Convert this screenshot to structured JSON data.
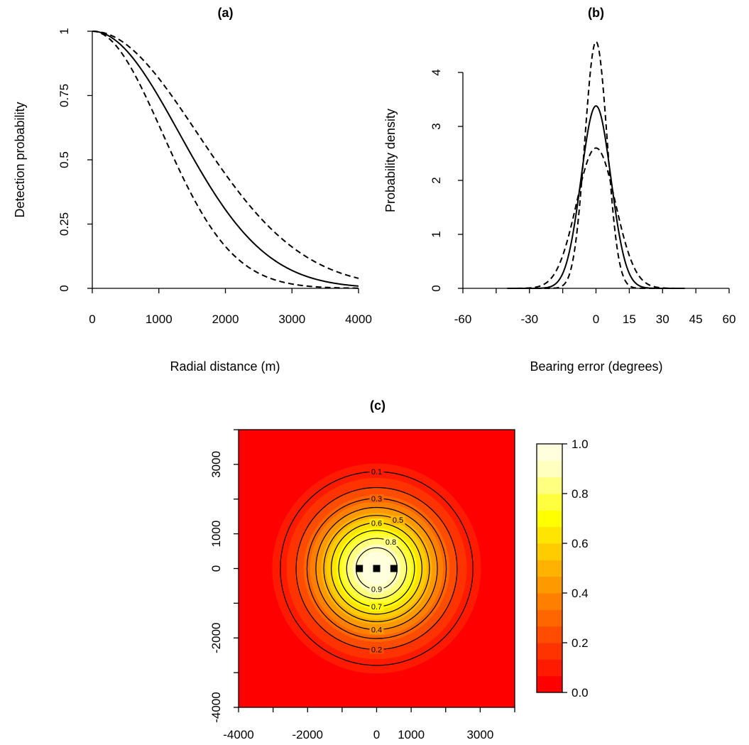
{
  "chart_data": [
    {
      "panel": "a",
      "type": "line",
      "title": "(a)",
      "xlabel": "Radial distance (m)",
      "ylabel": "Detection probability",
      "xlim": [
        0,
        4000
      ],
      "ylim": [
        0,
        1
      ],
      "x_ticks": [
        "0",
        "1000",
        "2000",
        "3000",
        "4000"
      ],
      "y_ticks": [
        "0",
        "0.25",
        "0.5",
        "0.75",
        "1"
      ],
      "series": [
        {
          "style": "solid",
          "model": "half-normal",
          "g0": 1,
          "sigma": 1300
        },
        {
          "style": "dashed",
          "model": "half-normal",
          "g0": 1,
          "sigma": 1050
        },
        {
          "style": "dashed",
          "model": "half-normal",
          "g0": 1,
          "sigma": 1570
        }
      ]
    },
    {
      "panel": "b",
      "type": "line",
      "title": "(b)",
      "xlabel": "Bearing error (degrees)",
      "ylabel": "Probability density",
      "xlim": [
        -60,
        60
      ],
      "ylim": [
        0,
        4
      ],
      "x_ticks": [
        "-60",
        "-30",
        "0",
        "15",
        "30",
        "45",
        "60"
      ],
      "x_tick_values": [
        -60,
        -45,
        -30,
        -15,
        0,
        15,
        30,
        45,
        60
      ],
      "y_ticks": [
        "0",
        "1",
        "2",
        "3",
        "4"
      ],
      "series": [
        {
          "style": "solid",
          "model": "normal",
          "peak": 3.38,
          "sd_degrees": 6.7
        },
        {
          "style": "dashed",
          "model": "normal",
          "peak": 4.57,
          "sd_degrees": 5.0
        },
        {
          "style": "dashed",
          "model": "normal",
          "peak": 2.6,
          "sd_degrees": 8.8
        }
      ]
    },
    {
      "panel": "c",
      "type": "heatmap",
      "title": "(c)",
      "xlim": [
        -4000,
        4000
      ],
      "ylim": [
        -4000,
        4000
      ],
      "x_ticks": [
        "-4000",
        "-2000",
        "0",
        "1000",
        "3000"
      ],
      "x_tick_values": [
        -4000,
        -3000,
        -2000,
        -1000,
        0,
        1000,
        2000,
        3000,
        4000
      ],
      "y_ticks": [
        "-4000",
        "-2000",
        "0",
        "1000",
        "3000"
      ],
      "y_tick_values": [
        -4000,
        -3000,
        -2000,
        -1000,
        0,
        1000,
        2000,
        3000,
        4000
      ],
      "contour_levels": [
        0.1,
        0.2,
        0.3,
        0.4,
        0.5,
        0.6,
        0.7,
        0.8,
        0.9
      ],
      "contour_label_text": [
        "0.1",
        "0.3",
        "0.5",
        "0.6",
        "0.8",
        "0.9",
        "0.7",
        "0.4",
        "0.2"
      ],
      "surface": {
        "model": "half-normal",
        "sigma": 1300
      },
      "detectors": [
        [
          -500,
          0
        ],
        [
          0,
          0
        ],
        [
          500,
          0
        ]
      ],
      "colorbar": {
        "ticks": [
          "0.0",
          "0.2",
          "0.4",
          "0.6",
          "0.8",
          "1.0"
        ],
        "bands": [
          "#FF0000",
          "#FF1A00",
          "#FF3300",
          "#FF4C00",
          "#FF6600",
          "#FF8000",
          "#FF9900",
          "#FFB200",
          "#FFCC00",
          "#FFE500",
          "#FFFF00",
          "#FFFF40",
          "#FFFF80",
          "#FFFFBF",
          "#FFFFDE"
        ],
        "range": [
          0,
          1
        ]
      }
    }
  ]
}
